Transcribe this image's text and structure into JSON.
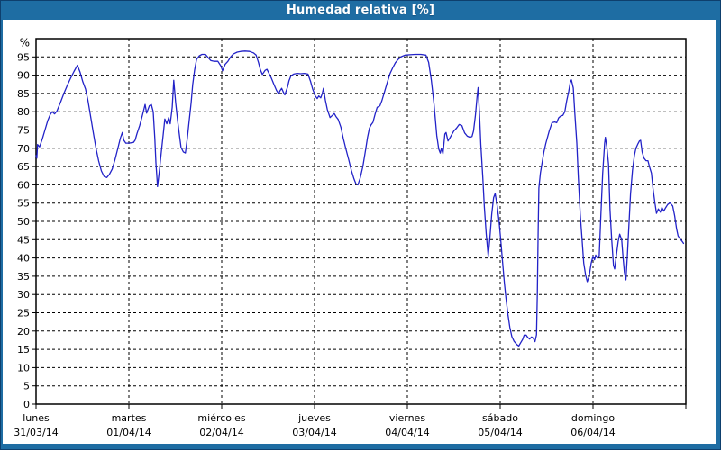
{
  "window": {
    "title": "Humedad relativa [%]"
  },
  "colors": {
    "titlebar": "#1e6da3",
    "frame": "#0e3f6d",
    "plot_bg": "#ffffff",
    "axis": "#000000",
    "grid": "#000000",
    "text": "#000000",
    "line": "#2222c8"
  },
  "chart_data": {
    "type": "line",
    "title": "Humedad relativa [%]",
    "ylabel": "%",
    "xlabel": "",
    "ylim": [
      0,
      100
    ],
    "xlim_hours": [
      0,
      168
    ],
    "y_ticks": [
      0,
      5,
      10,
      15,
      20,
      25,
      30,
      35,
      40,
      45,
      50,
      55,
      60,
      65,
      70,
      75,
      80,
      85,
      90,
      95
    ],
    "grid": "dashed-black",
    "legend_position": "none",
    "days": [
      {
        "name": "lunes",
        "date": "31/03/14"
      },
      {
        "name": "martes",
        "date": "01/04/14"
      },
      {
        "name": "miércoles",
        "date": "02/04/14"
      },
      {
        "name": "jueves",
        "date": "03/04/14"
      },
      {
        "name": "viernes",
        "date": "04/04/14"
      },
      {
        "name": "sábado",
        "date": "05/04/14"
      },
      {
        "name": "domingo",
        "date": "06/04/14"
      }
    ],
    "series": [
      {
        "name": "Humedad relativa",
        "color": "#2222c8",
        "x_unit": "hours since Monday 00:00",
        "points": [
          [
            0,
            68
          ],
          [
            0.2,
            67.3
          ],
          [
            0.4,
            71
          ],
          [
            0.9,
            70.4
          ],
          [
            1.6,
            72.5
          ],
          [
            2.3,
            75
          ],
          [
            3,
            77.5
          ],
          [
            3.7,
            79.3
          ],
          [
            4.2,
            80
          ],
          [
            4.8,
            79.4
          ],
          [
            5.4,
            80.2
          ],
          [
            6.3,
            82.5
          ],
          [
            7.2,
            85
          ],
          [
            8.1,
            87.3
          ],
          [
            9,
            89.3
          ],
          [
            9.8,
            91
          ],
          [
            10.7,
            92.7
          ],
          [
            11.4,
            90.8
          ],
          [
            12.1,
            88.2
          ],
          [
            12.8,
            86.2
          ],
          [
            13.4,
            83.2
          ],
          [
            14.1,
            78.8
          ],
          [
            14.8,
            74.3
          ],
          [
            15.5,
            70
          ],
          [
            16.2,
            66.5
          ],
          [
            16.9,
            63.8
          ],
          [
            17.6,
            62.3
          ],
          [
            18.3,
            62
          ],
          [
            19,
            62.9
          ],
          [
            19.7,
            64.3
          ],
          [
            20.4,
            66.8
          ],
          [
            21.1,
            69.8
          ],
          [
            21.8,
            72.8
          ],
          [
            22.3,
            74.3
          ],
          [
            22.7,
            72.2
          ],
          [
            23.2,
            71.4
          ],
          [
            24,
            71.4
          ],
          [
            25.2,
            71.6
          ],
          [
            25.6,
            72.2
          ],
          [
            26.1,
            74
          ],
          [
            26.8,
            76.2
          ],
          [
            27.5,
            79
          ],
          [
            28.2,
            82
          ],
          [
            28.6,
            79.6
          ],
          [
            29.3,
            81.6
          ],
          [
            29.8,
            82
          ],
          [
            30.3,
            80
          ],
          [
            30.7,
            72.6
          ],
          [
            31,
            66
          ],
          [
            31.4,
            59.5
          ],
          [
            31.9,
            64
          ],
          [
            32.4,
            69
          ],
          [
            32.9,
            74
          ],
          [
            33.3,
            78
          ],
          [
            33.8,
            76.7
          ],
          [
            34.3,
            78.4
          ],
          [
            34.7,
            76.7
          ],
          [
            35.2,
            81.2
          ],
          [
            35.6,
            88.6
          ],
          [
            36.1,
            82.5
          ],
          [
            36.6,
            77.5
          ],
          [
            37.1,
            73.4
          ],
          [
            37.5,
            70.2
          ],
          [
            38.1,
            69
          ],
          [
            38.6,
            68.7
          ],
          [
            39.1,
            72.6
          ],
          [
            39.6,
            77.5
          ],
          [
            40.1,
            82.5
          ],
          [
            40.5,
            87.4
          ],
          [
            41,
            91.5
          ],
          [
            41.5,
            94.3
          ],
          [
            42.2,
            95.3
          ],
          [
            42.9,
            95.7
          ],
          [
            43.8,
            95.7
          ],
          [
            44.5,
            94.8
          ],
          [
            45.2,
            94
          ],
          [
            46.1,
            93.8
          ],
          [
            47,
            93.8
          ],
          [
            47.8,
            92.5
          ],
          [
            48.2,
            91.2
          ],
          [
            48.9,
            93
          ],
          [
            49.6,
            93.8
          ],
          [
            50.3,
            95
          ],
          [
            51,
            95.8
          ],
          [
            52,
            96.3
          ],
          [
            52.9,
            96.5
          ],
          [
            54,
            96.6
          ],
          [
            55.2,
            96.5
          ],
          [
            56.2,
            96.1
          ],
          [
            56.9,
            95.5
          ],
          [
            57.5,
            93.5
          ],
          [
            58,
            91.5
          ],
          [
            58.5,
            90.2
          ],
          [
            59.2,
            91.3
          ],
          [
            59.7,
            91.6
          ],
          [
            60.1,
            90.8
          ],
          [
            60.8,
            89.3
          ],
          [
            61.5,
            87.5
          ],
          [
            62.2,
            85.8
          ],
          [
            62.7,
            84.9
          ],
          [
            63.1,
            85.8
          ],
          [
            63.5,
            86.4
          ],
          [
            64,
            85.2
          ],
          [
            64.3,
            84.6
          ],
          [
            65,
            86.7
          ],
          [
            65.4,
            88.5
          ],
          [
            65.9,
            89.8
          ],
          [
            66.6,
            90.3
          ],
          [
            67.5,
            90.5
          ],
          [
            68.4,
            90.4
          ],
          [
            69.4,
            90.5
          ],
          [
            70.3,
            90.3
          ],
          [
            71,
            88.2
          ],
          [
            71.5,
            86.2
          ],
          [
            72.2,
            84.3
          ],
          [
            72.7,
            83.6
          ],
          [
            73.1,
            84.3
          ],
          [
            73.6,
            83.8
          ],
          [
            74,
            85
          ],
          [
            74.3,
            86.4
          ],
          [
            74.8,
            83.2
          ],
          [
            75.3,
            80.6
          ],
          [
            76,
            78.4
          ],
          [
            76.6,
            79
          ],
          [
            77.1,
            79.5
          ],
          [
            77.6,
            78.6
          ],
          [
            78.1,
            77.9
          ],
          [
            78.8,
            75.8
          ],
          [
            79.4,
            72.8
          ],
          [
            80.1,
            69.8
          ],
          [
            80.8,
            67
          ],
          [
            81.5,
            64
          ],
          [
            82.2,
            61.6
          ],
          [
            82.7,
            60.3
          ],
          [
            83.2,
            60
          ],
          [
            83.8,
            61.8
          ],
          [
            84.5,
            65
          ],
          [
            85.2,
            69.5
          ],
          [
            85.7,
            73
          ],
          [
            86.2,
            75.5
          ],
          [
            86.6,
            76.4
          ],
          [
            87.1,
            77.1
          ],
          [
            87.7,
            79.5
          ],
          [
            88.2,
            81.2
          ],
          [
            88.9,
            81.6
          ],
          [
            89.4,
            83
          ],
          [
            90.1,
            85.5
          ],
          [
            90.8,
            88
          ],
          [
            91.5,
            90.4
          ],
          [
            92.2,
            92
          ],
          [
            92.9,
            93.4
          ],
          [
            93.6,
            94.3
          ],
          [
            94.5,
            95.1
          ],
          [
            95.4,
            95.5
          ],
          [
            96.6,
            95.6
          ],
          [
            98,
            95.7
          ],
          [
            99.5,
            95.7
          ],
          [
            100.8,
            95.5
          ],
          [
            101.5,
            93.5
          ],
          [
            102.2,
            88.6
          ],
          [
            102.9,
            82
          ],
          [
            103.6,
            73.5
          ],
          [
            104.1,
            69.8
          ],
          [
            104.5,
            68.7
          ],
          [
            104.8,
            70
          ],
          [
            105.2,
            68.5
          ],
          [
            105.7,
            73.9
          ],
          [
            106,
            74.3
          ],
          [
            106.5,
            72
          ],
          [
            107.1,
            73
          ],
          [
            108,
            74.7
          ],
          [
            108.7,
            75.5
          ],
          [
            109.4,
            76.5
          ],
          [
            110.1,
            76.2
          ],
          [
            110.8,
            74.2
          ],
          [
            111.5,
            73.3
          ],
          [
            112.2,
            73
          ],
          [
            112.7,
            73.2
          ],
          [
            113.1,
            74.7
          ],
          [
            113.6,
            79
          ],
          [
            114,
            84
          ],
          [
            114.3,
            86.6
          ],
          [
            114.7,
            78
          ],
          [
            115,
            71
          ],
          [
            115.5,
            62
          ],
          [
            115.9,
            54
          ],
          [
            116.4,
            46.5
          ],
          [
            116.9,
            40.5
          ],
          [
            117.3,
            45
          ],
          [
            117.8,
            52
          ],
          [
            118.3,
            56.5
          ],
          [
            118.7,
            57.6
          ],
          [
            119.2,
            54.3
          ],
          [
            119.7,
            50.1
          ],
          [
            120.1,
            45.5
          ],
          [
            120.6,
            39
          ],
          [
            121.1,
            33
          ],
          [
            121.5,
            29
          ],
          [
            122,
            24.5
          ],
          [
            122.5,
            21
          ],
          [
            123,
            18.5
          ],
          [
            123.6,
            17.2
          ],
          [
            124.3,
            16.3
          ],
          [
            124.8,
            15.9
          ],
          [
            125.3,
            16.8
          ],
          [
            125.8,
            17.7
          ],
          [
            126.2,
            18.9
          ],
          [
            126.7,
            18.9
          ],
          [
            127.1,
            18.3
          ],
          [
            127.6,
            17.8
          ],
          [
            128.1,
            18.4
          ],
          [
            128.5,
            18.1
          ],
          [
            129,
            17.1
          ],
          [
            129.4,
            19
          ],
          [
            129.6,
            30
          ],
          [
            129.8,
            47
          ],
          [
            130,
            59.1
          ],
          [
            130.4,
            63.2
          ],
          [
            130.9,
            66.5
          ],
          [
            131.3,
            69
          ],
          [
            131.8,
            71.3
          ],
          [
            132.3,
            73.3
          ],
          [
            132.7,
            74.8
          ],
          [
            133.4,
            77
          ],
          [
            134.1,
            77.2
          ],
          [
            134.6,
            77
          ],
          [
            135.1,
            78.3
          ],
          [
            135.6,
            78.8
          ],
          [
            136.2,
            79
          ],
          [
            136.7,
            80
          ],
          [
            137.2,
            83
          ],
          [
            137.7,
            85.5
          ],
          [
            138.1,
            88
          ],
          [
            138.4,
            88.7
          ],
          [
            138.9,
            86.5
          ],
          [
            139.3,
            79.6
          ],
          [
            139.8,
            71.4
          ],
          [
            140.2,
            62
          ],
          [
            140.7,
            52
          ],
          [
            141.2,
            44.5
          ],
          [
            141.6,
            38.6
          ],
          [
            142.1,
            35.3
          ],
          [
            142.5,
            33.5
          ],
          [
            143,
            35
          ],
          [
            143.5,
            38.5
          ],
          [
            144,
            40.5
          ],
          [
            144.4,
            39.5
          ],
          [
            144.7,
            40.8
          ],
          [
            145.1,
            40
          ],
          [
            145.6,
            40.6
          ],
          [
            146,
            51
          ],
          [
            146.5,
            63
          ],
          [
            147,
            71.4
          ],
          [
            147.2,
            73
          ],
          [
            147.6,
            70
          ],
          [
            148,
            65.7
          ],
          [
            148.4,
            53
          ],
          [
            148.8,
            45.5
          ],
          [
            149.3,
            38
          ],
          [
            149.6,
            37
          ],
          [
            150,
            40.5
          ],
          [
            150.5,
            44.5
          ],
          [
            150.9,
            46.5
          ],
          [
            151.4,
            45
          ],
          [
            151.7,
            41.1
          ],
          [
            152.1,
            36.1
          ],
          [
            152.5,
            34
          ],
          [
            152.9,
            41.1
          ],
          [
            153.3,
            49.3
          ],
          [
            153.7,
            57.5
          ],
          [
            154.2,
            64
          ],
          [
            154.7,
            68
          ],
          [
            155.1,
            70
          ],
          [
            155.6,
            71.2
          ],
          [
            156,
            72
          ],
          [
            156.3,
            72.2
          ],
          [
            156.7,
            69
          ],
          [
            157.2,
            67.3
          ],
          [
            157.7,
            66.6
          ],
          [
            158.2,
            66.6
          ],
          [
            158.6,
            64.9
          ],
          [
            159.1,
            63.2
          ],
          [
            159.5,
            59.1
          ],
          [
            160,
            55
          ],
          [
            160.4,
            52.2
          ],
          [
            160.9,
            53.4
          ],
          [
            161.4,
            52.5
          ],
          [
            161.8,
            53.8
          ],
          [
            162.3,
            52.8
          ],
          [
            162.8,
            53.8
          ],
          [
            163.3,
            54.6
          ],
          [
            163.9,
            55.1
          ],
          [
            164.6,
            54.2
          ],
          [
            165.1,
            51.5
          ],
          [
            165.6,
            48
          ],
          [
            166,
            46
          ],
          [
            166.5,
            45.2
          ],
          [
            167,
            44.6
          ],
          [
            167.4,
            44
          ]
        ]
      }
    ]
  }
}
